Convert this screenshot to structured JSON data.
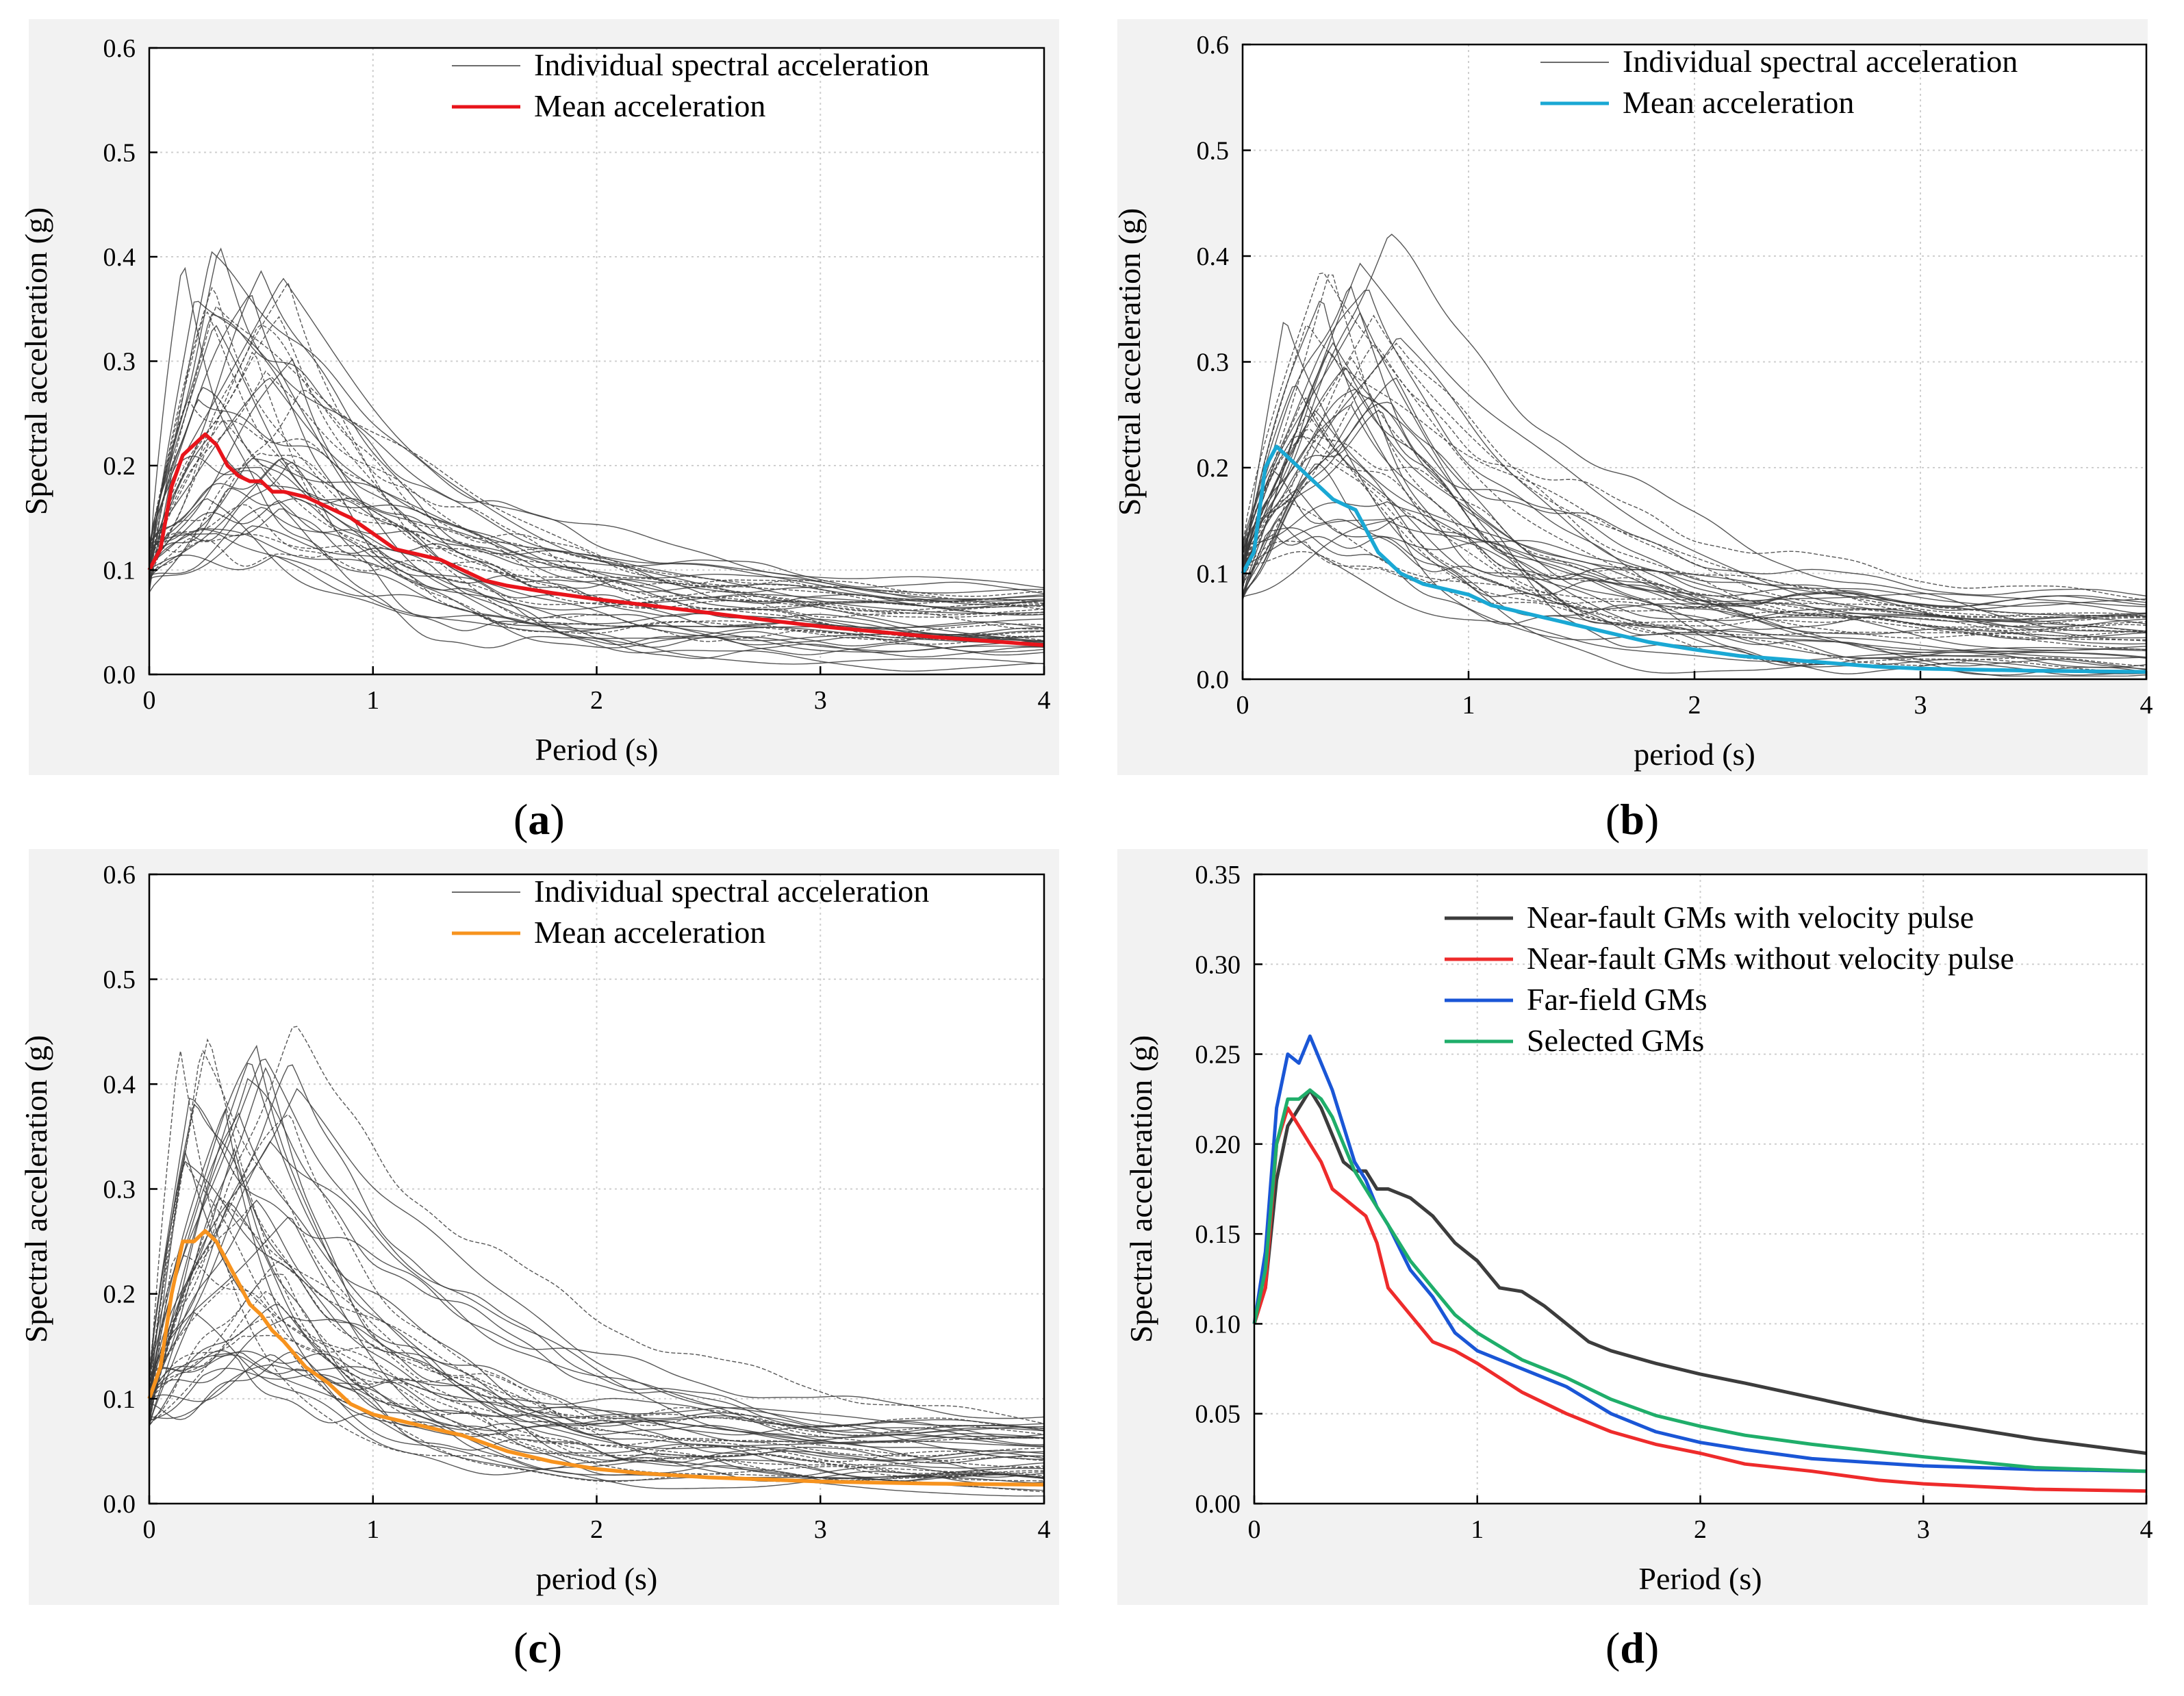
{
  "chart_data": [
    {
      "id": "a",
      "type": "line",
      "caption": "a",
      "xlabel": "Period (s)",
      "ylabel": "Spectral acceleration (g)",
      "xlim": [
        0,
        4
      ],
      "ylim": [
        0,
        0.6
      ],
      "xticks": [
        0,
        1,
        2,
        3,
        4
      ],
      "yticks": [
        "0.0",
        "0.1",
        "0.2",
        "0.3",
        "0.4",
        "0.5",
        "0.6"
      ],
      "grid": true,
      "legend": "top-right",
      "series": [
        {
          "name": "Individual spectral acceleration",
          "color": "#3a3a3a",
          "style": "bundle"
        },
        {
          "name": "Mean acceleration",
          "color": "#e8141b",
          "x": [
            0,
            0.05,
            0.1,
            0.15,
            0.2,
            0.25,
            0.3,
            0.35,
            0.4,
            0.45,
            0.5,
            0.55,
            0.6,
            0.7,
            0.8,
            0.9,
            1.0,
            1.1,
            1.2,
            1.3,
            1.4,
            1.5,
            1.6,
            1.8,
            2.0,
            2.2,
            2.5,
            2.8,
            3.0,
            3.5,
            4.0
          ],
          "values": [
            0.1,
            0.12,
            0.18,
            0.21,
            0.22,
            0.23,
            0.22,
            0.2,
            0.19,
            0.185,
            0.185,
            0.175,
            0.175,
            0.17,
            0.16,
            0.15,
            0.135,
            0.12,
            0.115,
            0.11,
            0.1,
            0.09,
            0.085,
            0.078,
            0.072,
            0.067,
            0.059,
            0.051,
            0.046,
            0.036,
            0.028
          ]
        }
      ]
    },
    {
      "id": "b",
      "type": "line",
      "caption": "b",
      "xlabel": "period (s)",
      "ylabel": "Spectral acceleration (g)",
      "xlim": [
        0,
        4
      ],
      "ylim": [
        0,
        0.6
      ],
      "xticks": [
        0,
        1,
        2,
        3,
        4
      ],
      "yticks": [
        "0.0",
        "0.1",
        "0.2",
        "0.3",
        "0.4",
        "0.5",
        "0.6"
      ],
      "grid": true,
      "legend": "top-right",
      "series": [
        {
          "name": "Individual spectral acceleration",
          "color": "#3a3a3a",
          "style": "bundle"
        },
        {
          "name": "Mean acceleration",
          "color": "#1aa8d4",
          "x": [
            0,
            0.05,
            0.1,
            0.15,
            0.2,
            0.25,
            0.3,
            0.35,
            0.4,
            0.45,
            0.5,
            0.55,
            0.6,
            0.7,
            0.8,
            0.9,
            1.0,
            1.1,
            1.2,
            1.4,
            1.6,
            1.8,
            2.0,
            2.2,
            2.5,
            2.8,
            3.0,
            3.5,
            4.0
          ],
          "values": [
            0.1,
            0.12,
            0.2,
            0.22,
            0.21,
            0.2,
            0.19,
            0.18,
            0.17,
            0.165,
            0.16,
            0.14,
            0.12,
            0.1,
            0.09,
            0.085,
            0.08,
            0.07,
            0.065,
            0.055,
            0.045,
            0.035,
            0.028,
            0.022,
            0.017,
            0.012,
            0.01,
            0.008,
            0.007
          ]
        }
      ]
    },
    {
      "id": "c",
      "type": "line",
      "caption": "c",
      "xlabel": "period (s)",
      "ylabel": "Spectral acceleration (g)",
      "xlim": [
        0,
        4
      ],
      "ylim": [
        0,
        0.6
      ],
      "xticks": [
        0,
        1,
        2,
        3,
        4
      ],
      "yticks": [
        "0.0",
        "0.1",
        "0.2",
        "0.3",
        "0.4",
        "0.5",
        "0.6"
      ],
      "grid": true,
      "legend": "top-right",
      "series": [
        {
          "name": "Individual spectral acceleration",
          "color": "#3a3a3a",
          "style": "bundle"
        },
        {
          "name": "Mean acceleration",
          "color": "#f7931e",
          "x": [
            0,
            0.05,
            0.1,
            0.15,
            0.2,
            0.25,
            0.3,
            0.35,
            0.4,
            0.45,
            0.5,
            0.55,
            0.6,
            0.7,
            0.8,
            0.9,
            1.0,
            1.2,
            1.4,
            1.6,
            1.8,
            2.0,
            2.2,
            2.5,
            3.0,
            3.5,
            4.0
          ],
          "values": [
            0.1,
            0.13,
            0.2,
            0.25,
            0.25,
            0.26,
            0.25,
            0.23,
            0.21,
            0.19,
            0.18,
            0.165,
            0.155,
            0.13,
            0.115,
            0.095,
            0.085,
            0.075,
            0.065,
            0.05,
            0.04,
            0.033,
            0.029,
            0.025,
            0.021,
            0.019,
            0.018
          ]
        }
      ]
    },
    {
      "id": "d",
      "type": "line",
      "caption": "d",
      "xlabel": "Period (s)",
      "ylabel": "Spectral acceleration (g)",
      "xlim": [
        0,
        4
      ],
      "ylim": [
        0,
        0.35
      ],
      "xticks": [
        0,
        1,
        2,
        3,
        4
      ],
      "yticks": [
        "0.00",
        "0.05",
        "0.10",
        "0.15",
        "0.20",
        "0.25",
        "0.30",
        "0.35"
      ],
      "grid": true,
      "legend": "top-right",
      "series": [
        {
          "name": "Near-fault GMs with velocity pulse",
          "color": "#3c3c3c",
          "x": [
            0,
            0.05,
            0.1,
            0.15,
            0.2,
            0.25,
            0.3,
            0.35,
            0.4,
            0.45,
            0.5,
            0.55,
            0.6,
            0.7,
            0.8,
            0.9,
            1.0,
            1.1,
            1.2,
            1.3,
            1.4,
            1.5,
            1.6,
            1.8,
            2.0,
            2.2,
            2.5,
            2.8,
            3.0,
            3.5,
            4.0
          ],
          "values": [
            0.1,
            0.12,
            0.18,
            0.21,
            0.22,
            0.23,
            0.22,
            0.205,
            0.19,
            0.185,
            0.185,
            0.175,
            0.175,
            0.17,
            0.16,
            0.145,
            0.135,
            0.12,
            0.118,
            0.11,
            0.1,
            0.09,
            0.085,
            0.078,
            0.072,
            0.067,
            0.059,
            0.051,
            0.046,
            0.036,
            0.028
          ]
        },
        {
          "name": "Near-fault GMs without velocity pulse",
          "color": "#ee2b2b",
          "x": [
            0,
            0.05,
            0.1,
            0.15,
            0.2,
            0.25,
            0.3,
            0.35,
            0.4,
            0.45,
            0.5,
            0.55,
            0.6,
            0.7,
            0.8,
            0.9,
            1.0,
            1.1,
            1.2,
            1.4,
            1.6,
            1.8,
            2.0,
            2.2,
            2.5,
            2.8,
            3.0,
            3.5,
            4.0
          ],
          "values": [
            0.1,
            0.12,
            0.2,
            0.22,
            0.21,
            0.2,
            0.19,
            0.175,
            0.17,
            0.165,
            0.16,
            0.145,
            0.12,
            0.105,
            0.09,
            0.085,
            0.078,
            0.07,
            0.062,
            0.05,
            0.04,
            0.033,
            0.028,
            0.022,
            0.018,
            0.013,
            0.011,
            0.008,
            0.007
          ]
        },
        {
          "name": "Far-field GMs",
          "color": "#1a56d6",
          "x": [
            0,
            0.05,
            0.1,
            0.15,
            0.2,
            0.25,
            0.3,
            0.35,
            0.4,
            0.45,
            0.5,
            0.55,
            0.6,
            0.7,
            0.8,
            0.9,
            1.0,
            1.2,
            1.4,
            1.6,
            1.8,
            2.0,
            2.2,
            2.5,
            3.0,
            3.5,
            4.0
          ],
          "values": [
            0.1,
            0.14,
            0.22,
            0.25,
            0.245,
            0.26,
            0.245,
            0.23,
            0.21,
            0.19,
            0.18,
            0.165,
            0.155,
            0.13,
            0.115,
            0.095,
            0.085,
            0.075,
            0.065,
            0.05,
            0.04,
            0.034,
            0.03,
            0.025,
            0.021,
            0.019,
            0.018
          ]
        },
        {
          "name": "Selected GMs",
          "color": "#1fae6a",
          "x": [
            0,
            0.05,
            0.1,
            0.15,
            0.2,
            0.25,
            0.3,
            0.35,
            0.4,
            0.45,
            0.5,
            0.55,
            0.6,
            0.7,
            0.8,
            0.9,
            1.0,
            1.2,
            1.4,
            1.6,
            1.8,
            2.0,
            2.2,
            2.5,
            3.0,
            3.5,
            4.0
          ],
          "values": [
            0.1,
            0.13,
            0.2,
            0.225,
            0.225,
            0.23,
            0.225,
            0.215,
            0.2,
            0.185,
            0.175,
            0.165,
            0.155,
            0.135,
            0.12,
            0.105,
            0.095,
            0.08,
            0.07,
            0.058,
            0.049,
            0.043,
            0.038,
            0.033,
            0.026,
            0.02,
            0.018
          ]
        }
      ]
    }
  ]
}
